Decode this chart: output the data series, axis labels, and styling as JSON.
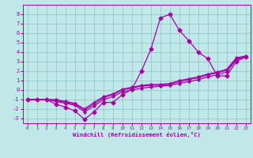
{
  "xlabel": "Windchill (Refroidissement éolien,°C)",
  "background_color": "#c0e8e8",
  "grid_color": "#98c8c8",
  "line_color": "#aa00aa",
  "x": [
    0,
    1,
    2,
    3,
    4,
    5,
    6,
    7,
    8,
    9,
    10,
    11,
    12,
    13,
    14,
    15,
    16,
    17,
    18,
    19,
    20,
    21,
    22,
    23
  ],
  "series1": [
    -1.0,
    -1.0,
    -1.0,
    -1.5,
    -1.8,
    -2.2,
    -3.1,
    -2.3,
    -1.3,
    -1.3,
    -0.5,
    0.1,
    2.0,
    4.3,
    7.6,
    8.0,
    6.3,
    5.2,
    4.0,
    3.3,
    1.5,
    1.5,
    3.0,
    3.5
  ],
  "series2": [
    -1.0,
    -1.0,
    -1.0,
    -1.2,
    -1.4,
    -1.6,
    -2.3,
    -1.7,
    -1.0,
    -0.7,
    -0.2,
    0.0,
    0.2,
    0.3,
    0.4,
    0.5,
    0.7,
    0.9,
    1.1,
    1.4,
    1.6,
    1.9,
    3.2,
    3.5
  ],
  "series3": [
    -1.0,
    -1.0,
    -1.0,
    -1.1,
    -1.3,
    -1.5,
    -2.1,
    -1.5,
    -0.8,
    -0.5,
    0.0,
    0.2,
    0.4,
    0.5,
    0.5,
    0.6,
    0.9,
    1.1,
    1.3,
    1.6,
    1.8,
    2.1,
    3.3,
    3.5
  ],
  "series4": [
    -1.0,
    -1.0,
    -1.0,
    -1.0,
    -1.2,
    -1.4,
    -2.0,
    -1.3,
    -0.7,
    -0.4,
    0.1,
    0.3,
    0.5,
    0.6,
    0.6,
    0.7,
    1.0,
    1.2,
    1.4,
    1.7,
    1.9,
    2.2,
    3.4,
    3.6
  ],
  "ylim": [
    -3.5,
    9.0
  ],
  "xlim": [
    -0.5,
    23.5
  ],
  "yticks": [
    -3,
    -2,
    -1,
    0,
    1,
    2,
    3,
    4,
    5,
    6,
    7,
    8
  ],
  "xticks": [
    0,
    1,
    2,
    3,
    4,
    5,
    6,
    7,
    8,
    9,
    10,
    11,
    12,
    13,
    14,
    15,
    16,
    17,
    18,
    19,
    20,
    21,
    22,
    23
  ]
}
